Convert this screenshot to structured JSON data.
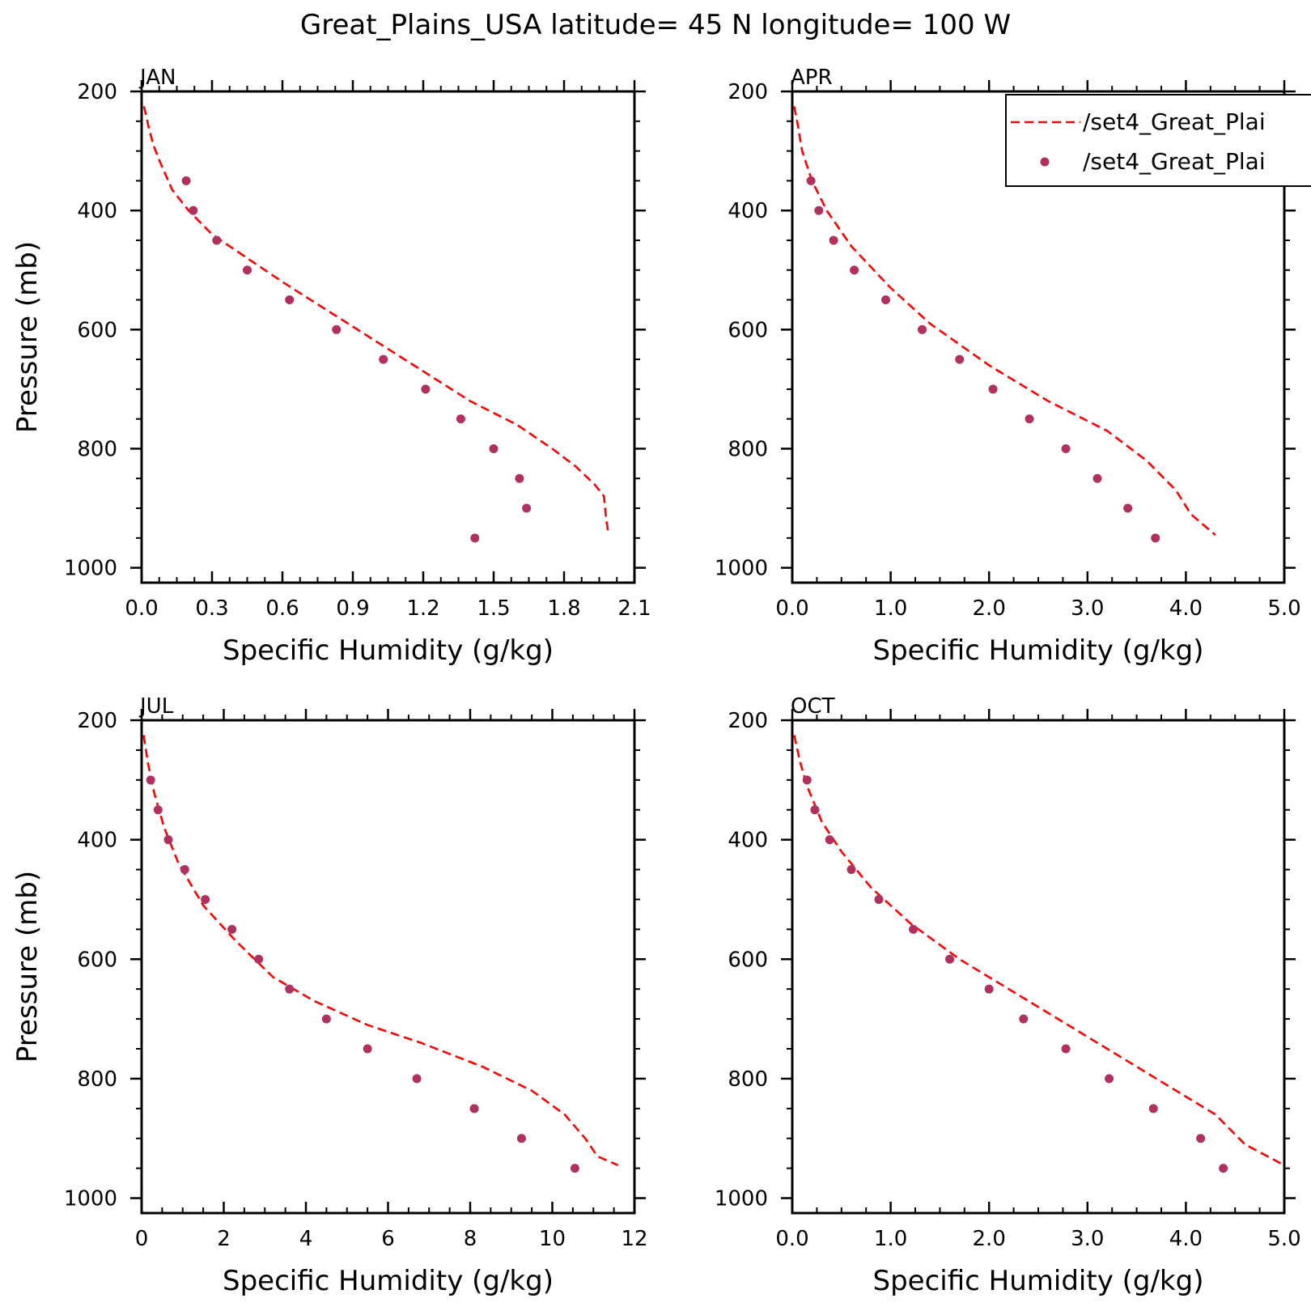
{
  "figure": {
    "title": "Great_Plains_USA  latitude= 45 N longitude= 100 W"
  },
  "legend": {
    "entries": [
      {
        "label": "/set4_Great_Plai",
        "style": "dashed-line",
        "color": "#ff0000"
      },
      {
        "label": "/set4_Great_Plai",
        "style": "dot",
        "color": "#b03060"
      }
    ]
  },
  "colors": {
    "model": "#ff0000",
    "obs": "#b03060",
    "axis": "#000000"
  },
  "chart_data": [
    {
      "type": "line",
      "title": "JAN",
      "xlabel": "Specific Humidity (g/kg)",
      "ylabel": "Pressure (mb)",
      "xlim": [
        0,
        2.1
      ],
      "ylim": [
        200,
        1025
      ],
      "y_inverted": true,
      "xticks": [
        "0.0",
        "0.3",
        "0.6",
        "0.9",
        "1.2",
        "1.5",
        "1.8",
        "2.1"
      ],
      "xtick_values": [
        0,
        0.3,
        0.6,
        0.9,
        1.2,
        1.5,
        1.8,
        2.1
      ],
      "yticks": [
        "200",
        "400",
        "600",
        "800",
        "1000"
      ],
      "yminor_step": 50,
      "series": [
        {
          "kind": "line",
          "points": [
            [
              0.01,
              225
            ],
            [
              0.03,
              260
            ],
            [
              0.05,
              290
            ],
            [
              0.08,
              320
            ],
            [
              0.13,
              365
            ],
            [
              0.2,
              400
            ],
            [
              0.3,
              440
            ],
            [
              0.45,
              480
            ],
            [
              0.6,
              520
            ],
            [
              0.8,
              570
            ],
            [
              1.0,
              620
            ],
            [
              1.2,
              670
            ],
            [
              1.4,
              720
            ],
            [
              1.6,
              760
            ],
            [
              1.75,
              800
            ],
            [
              1.85,
              830
            ],
            [
              1.93,
              860
            ],
            [
              1.97,
              880
            ],
            [
              1.98,
              920
            ],
            [
              1.99,
              945
            ]
          ]
        },
        {
          "kind": "scatter",
          "points": [
            [
              0.19,
              350
            ],
            [
              0.22,
              400
            ],
            [
              0.32,
              450
            ],
            [
              0.45,
              500
            ],
            [
              0.63,
              550
            ],
            [
              0.83,
              600
            ],
            [
              1.03,
              650
            ],
            [
              1.21,
              700
            ],
            [
              1.36,
              750
            ],
            [
              1.5,
              800
            ],
            [
              1.61,
              850
            ],
            [
              1.64,
              900
            ],
            [
              1.42,
              950
            ]
          ]
        }
      ]
    },
    {
      "type": "line",
      "title": "APR",
      "xlabel": "Specific Humidity (g/kg)",
      "ylabel": "",
      "xlim": [
        0,
        5.0
      ],
      "ylim": [
        200,
        1025
      ],
      "y_inverted": true,
      "xticks": [
        "0.0",
        "1.0",
        "2.0",
        "3.0",
        "4.0",
        "5.0"
      ],
      "xtick_values": [
        0,
        1,
        2,
        3,
        4,
        5
      ],
      "yticks": [
        "200",
        "400",
        "600",
        "800",
        "1000"
      ],
      "yminor_step": 50,
      "series": [
        {
          "kind": "line",
          "points": [
            [
              0.02,
              225
            ],
            [
              0.06,
              260
            ],
            [
              0.1,
              300
            ],
            [
              0.2,
              350
            ],
            [
              0.35,
              400
            ],
            [
              0.6,
              460
            ],
            [
              1.0,
              530
            ],
            [
              1.4,
              590
            ],
            [
              2.0,
              660
            ],
            [
              2.6,
              720
            ],
            [
              3.2,
              770
            ],
            [
              3.6,
              820
            ],
            [
              3.9,
              870
            ],
            [
              4.05,
              910
            ],
            [
              4.3,
              945
            ]
          ]
        },
        {
          "kind": "scatter",
          "points": [
            [
              0.19,
              350
            ],
            [
              0.27,
              400
            ],
            [
              0.42,
              450
            ],
            [
              0.63,
              500
            ],
            [
              0.95,
              550
            ],
            [
              1.32,
              600
            ],
            [
              1.7,
              650
            ],
            [
              2.04,
              700
            ],
            [
              2.41,
              750
            ],
            [
              2.78,
              800
            ],
            [
              3.1,
              850
            ],
            [
              3.41,
              900
            ],
            [
              3.69,
              950
            ]
          ]
        }
      ]
    },
    {
      "type": "line",
      "title": "JUL",
      "xlabel": "Specific Humidity (g/kg)",
      "ylabel": "Pressure (mb)",
      "xlim": [
        0,
        12
      ],
      "ylim": [
        200,
        1025
      ],
      "y_inverted": true,
      "xticks": [
        "0",
        "2",
        "4",
        "6",
        "8",
        "10",
        "12"
      ],
      "xtick_values": [
        0,
        2,
        4,
        6,
        8,
        10,
        12
      ],
      "yticks": [
        "200",
        "400",
        "600",
        "800",
        "1000"
      ],
      "yminor_step": 50,
      "series": [
        {
          "kind": "line",
          "points": [
            [
              0.05,
              225
            ],
            [
              0.15,
              270
            ],
            [
              0.3,
              320
            ],
            [
              0.55,
              380
            ],
            [
              0.9,
              440
            ],
            [
              1.5,
              510
            ],
            [
              2.3,
              570
            ],
            [
              3.2,
              630
            ],
            [
              4.2,
              670
            ],
            [
              5.5,
              710
            ],
            [
              6.8,
              740
            ],
            [
              8.3,
              780
            ],
            [
              9.5,
              820
            ],
            [
              10.3,
              860
            ],
            [
              10.8,
              900
            ],
            [
              11.1,
              930
            ],
            [
              11.6,
              945
            ]
          ]
        },
        {
          "kind": "scatter",
          "points": [
            [
              0.22,
              300
            ],
            [
              0.4,
              350
            ],
            [
              0.65,
              400
            ],
            [
              1.05,
              450
            ],
            [
              1.55,
              500
            ],
            [
              2.2,
              550
            ],
            [
              2.85,
              600
            ],
            [
              3.6,
              650
            ],
            [
              4.5,
              700
            ],
            [
              5.5,
              750
            ],
            [
              6.7,
              800
            ],
            [
              8.1,
              850
            ],
            [
              9.25,
              900
            ],
            [
              10.55,
              950
            ]
          ]
        }
      ]
    },
    {
      "type": "line",
      "title": "OCT",
      "xlabel": "Specific Humidity (g/kg)",
      "ylabel": "",
      "xlim": [
        0,
        5.0
      ],
      "ylim": [
        200,
        1025
      ],
      "y_inverted": true,
      "xticks": [
        "0.0",
        "1.0",
        "2.0",
        "3.0",
        "4.0",
        "5.0"
      ],
      "xtick_values": [
        0,
        1,
        2,
        3,
        4,
        5
      ],
      "yticks": [
        "200",
        "400",
        "600",
        "800",
        "1000"
      ],
      "yminor_step": 50,
      "series": [
        {
          "kind": "line",
          "points": [
            [
              0.02,
              225
            ],
            [
              0.08,
              270
            ],
            [
              0.15,
              310
            ],
            [
              0.3,
              370
            ],
            [
              0.5,
              420
            ],
            [
              0.8,
              480
            ],
            [
              1.2,
              540
            ],
            [
              1.7,
              600
            ],
            [
              2.3,
              660
            ],
            [
              3.0,
              730
            ],
            [
              3.5,
              780
            ],
            [
              4.0,
              830
            ],
            [
              4.3,
              860
            ],
            [
              4.6,
              910
            ],
            [
              5.0,
              945
            ]
          ]
        },
        {
          "kind": "scatter",
          "points": [
            [
              0.15,
              300
            ],
            [
              0.23,
              350
            ],
            [
              0.38,
              400
            ],
            [
              0.6,
              450
            ],
            [
              0.88,
              500
            ],
            [
              1.23,
              550
            ],
            [
              1.6,
              600
            ],
            [
              2.0,
              650
            ],
            [
              2.35,
              700
            ],
            [
              2.78,
              750
            ],
            [
              3.22,
              800
            ],
            [
              3.67,
              850
            ],
            [
              4.15,
              900
            ],
            [
              4.38,
              950
            ]
          ]
        }
      ]
    }
  ]
}
